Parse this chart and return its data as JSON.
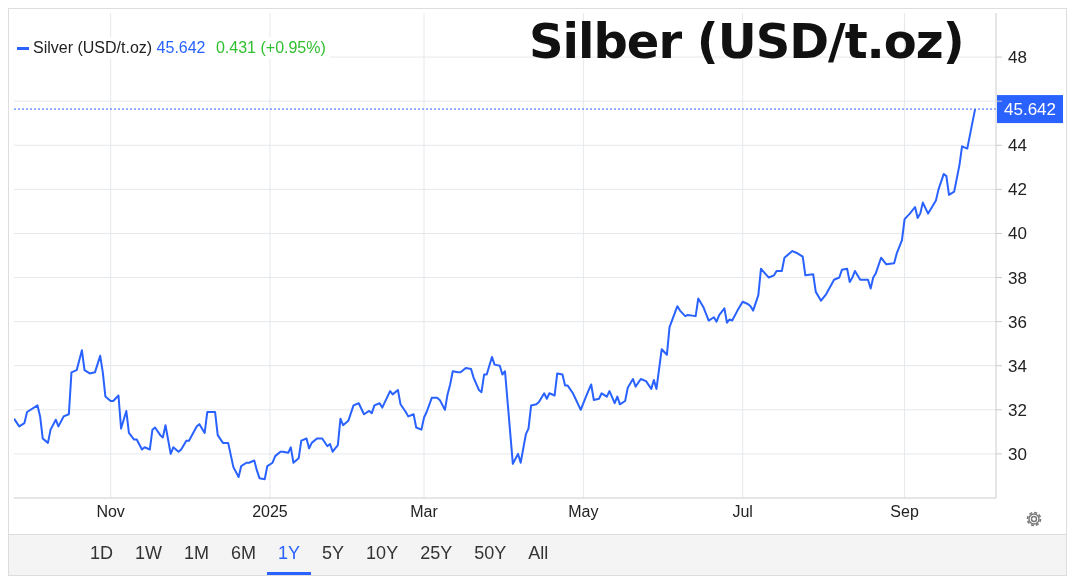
{
  "chart_data": {
    "type": "line",
    "title": "Silber (USD/t.oz)",
    "x": [
      "2024-09-25",
      "2024-09-27",
      "2024-09-29",
      "2024-09-30",
      "2024-10-04",
      "2024-10-05",
      "2024-10-06",
      "2024-10-08",
      "2024-10-09",
      "2024-10-11",
      "2024-10-12",
      "2024-10-14",
      "2024-10-16",
      "2024-10-17",
      "2024-10-19",
      "2024-10-21",
      "2024-10-22",
      "2024-10-24",
      "2024-10-26",
      "2024-10-28",
      "2024-10-29",
      "2024-10-30",
      "2024-11-01",
      "2024-11-02",
      "2024-11-04",
      "2024-11-05",
      "2024-11-07",
      "2024-11-08",
      "2024-11-10",
      "2024-11-11",
      "2024-11-13",
      "2024-11-14",
      "2024-11-16",
      "2024-11-17",
      "2024-11-18",
      "2024-11-20",
      "2024-11-21",
      "2024-11-22",
      "2024-11-24",
      "2024-11-25",
      "2024-11-27",
      "2024-11-28",
      "2024-11-30",
      "2024-12-01",
      "2024-12-04",
      "2024-12-05",
      "2024-12-07",
      "2024-12-08",
      "2024-12-11",
      "2024-12-12",
      "2024-12-14",
      "2024-12-16",
      "2024-12-18",
      "2024-12-20",
      "2024-12-21",
      "2024-12-23",
      "2024-12-24",
      "2024-12-26",
      "2024-12-27",
      "2024-12-28",
      "2024-12-30",
      "2024-12-31",
      "2025-01-02",
      "2025-01-03",
      "2025-01-05",
      "2025-01-06",
      "2025-01-08",
      "2025-01-09",
      "2025-01-10",
      "2025-01-12",
      "2025-01-13",
      "2025-01-15",
      "2025-01-16",
      "2025-01-17",
      "2025-01-19",
      "2025-01-21",
      "2025-01-23",
      "2025-01-24",
      "2025-01-25",
      "2025-01-27",
      "2025-01-28",
      "2025-01-29",
      "2025-01-31",
      "2025-02-02",
      "2025-02-04",
      "2025-02-06",
      "2025-02-08",
      "2025-02-09",
      "2025-02-10",
      "2025-02-12",
      "2025-02-13",
      "2025-02-16",
      "2025-02-17",
      "2025-02-19",
      "2025-02-20",
      "2025-02-22",
      "2025-02-23",
      "2025-02-25",
      "2025-02-26",
      "2025-02-28",
      "2025-03-01",
      "2025-03-02",
      "2025-03-04",
      "2025-03-06",
      "2025-03-07",
      "2025-03-09",
      "2025-03-10",
      "2025-03-11",
      "2025-03-12",
      "2025-03-14",
      "2025-03-15",
      "2025-03-17",
      "2025-03-19",
      "2025-03-20",
      "2025-03-22",
      "2025-03-23",
      "2025-03-24",
      "2025-03-25",
      "2025-03-27",
      "2025-03-28",
      "2025-03-30",
      "2025-03-31",
      "2025-04-01",
      "2025-04-04",
      "2025-04-06",
      "2025-04-07",
      "2025-04-09",
      "2025-04-10",
      "2025-04-11",
      "2025-04-13",
      "2025-04-14",
      "2025-04-16",
      "2025-04-17",
      "2025-04-18",
      "2025-04-20",
      "2025-04-21",
      "2025-04-23",
      "2025-04-24",
      "2025-04-25",
      "2025-04-27",
      "2025-04-28",
      "2025-04-30",
      "2025-05-02",
      "2025-05-04",
      "2025-05-05",
      "2025-05-07",
      "2025-05-08",
      "2025-05-10",
      "2025-05-11",
      "2025-05-13",
      "2025-05-14",
      "2025-05-15",
      "2025-05-17",
      "2025-05-18",
      "2025-05-20",
      "2025-05-21",
      "2025-05-23",
      "2025-05-25",
      "2025-05-27",
      "2025-05-28",
      "2025-05-29",
      "2025-05-31",
      "2025-06-02",
      "2025-06-03",
      "2025-06-06",
      "2025-06-07",
      "2025-06-09",
      "2025-06-10",
      "2025-06-13",
      "2025-06-14",
      "2025-06-16",
      "2025-06-18",
      "2025-06-20",
      "2025-06-21",
      "2025-06-22",
      "2025-06-24",
      "2025-06-25",
      "2025-06-26",
      "2025-06-27",
      "2025-06-29",
      "2025-07-01",
      "2025-07-03",
      "2025-07-04",
      "2025-07-05",
      "2025-07-07",
      "2025-07-08",
      "2025-07-11",
      "2025-07-13",
      "2025-07-14",
      "2025-07-16",
      "2025-07-17",
      "2025-07-20",
      "2025-07-22",
      "2025-07-24",
      "2025-07-25",
      "2025-07-28",
      "2025-07-29",
      "2025-07-31",
      "2025-08-02",
      "2025-08-05",
      "2025-08-07",
      "2025-08-08",
      "2025-08-10",
      "2025-08-11",
      "2025-08-12",
      "2025-08-13",
      "2025-08-15",
      "2025-08-18",
      "2025-08-19",
      "2025-08-20",
      "2025-08-21",
      "2025-08-23",
      "2025-08-25",
      "2025-08-28",
      "2025-08-29",
      "2025-08-31",
      "2025-09-01",
      "2025-09-03",
      "2025-09-05",
      "2025-09-06",
      "2025-09-07",
      "2025-09-08",
      "2025-09-10",
      "2025-09-11",
      "2025-09-13",
      "2025-09-14",
      "2025-09-16",
      "2025-09-17",
      "2025-09-18",
      "2025-09-20",
      "2025-09-22",
      "2025-09-23",
      "2025-09-25",
      "2025-09-27",
      "2025-09-28"
    ],
    "series": [
      {
        "name": "Silver (USD/t.oz)",
        "color": "#2962ff",
        "values": [
          31.6,
          31.25,
          31.4,
          31.9,
          32.2,
          31.7,
          30.7,
          30.5,
          31.1,
          31.55,
          31.25,
          31.7,
          31.8,
          33.7,
          33.8,
          34.7,
          33.8,
          33.65,
          33.7,
          34.45,
          33.7,
          32.6,
          32.4,
          32.4,
          32.65,
          31.15,
          31.95,
          30.95,
          30.65,
          30.65,
          30.2,
          30.3,
          30.2,
          31.1,
          31.2,
          30.85,
          30.75,
          31.3,
          30.0,
          30.3,
          30.1,
          30.2,
          30.6,
          30.6,
          31.25,
          31.35,
          30.95,
          31.9,
          31.9,
          30.85,
          30.5,
          30.5,
          29.4,
          28.95,
          29.45,
          29.6,
          29.6,
          29.7,
          29.25,
          28.9,
          28.85,
          29.45,
          29.6,
          29.9,
          30.1,
          30.1,
          30.05,
          30.3,
          29.6,
          29.8,
          30.6,
          30.7,
          30.25,
          30.5,
          30.7,
          30.7,
          30.35,
          30.45,
          30.1,
          30.4,
          31.6,
          31.3,
          31.5,
          32.2,
          32.3,
          31.8,
          31.95,
          31.85,
          32.2,
          32.3,
          32.1,
          32.85,
          32.7,
          32.9,
          32.25,
          31.9,
          31.7,
          31.8,
          31.2,
          31.1,
          31.65,
          31.9,
          32.55,
          32.55,
          32.45,
          32.0,
          32.7,
          33.15,
          33.75,
          33.7,
          33.7,
          33.9,
          33.85,
          33.45,
          32.9,
          32.8,
          33.6,
          33.6,
          34.4,
          34.05,
          34.0,
          33.6,
          33.75,
          29.55,
          30.0,
          29.6,
          30.9,
          31.15,
          32.2,
          32.25,
          32.35,
          32.75,
          32.5,
          32.75,
          32.65,
          33.65,
          33.6,
          33.1,
          33.1,
          32.75,
          32.5,
          32.0,
          32.6,
          33.15,
          32.45,
          32.5,
          32.75,
          32.6,
          32.85,
          32.3,
          32.6,
          32.25,
          32.4,
          33.0,
          33.4,
          33.05,
          33.4,
          33.3,
          32.95,
          33.35,
          32.95,
          34.75,
          34.5,
          35.75,
          36.7,
          36.5,
          36.25,
          36.3,
          36.25,
          37.05,
          36.65,
          36.05,
          36.2,
          36.0,
          36.3,
          36.6,
          35.95,
          36.1,
          36.05,
          36.5,
          36.9,
          36.8,
          36.7,
          36.5,
          37.2,
          38.4,
          38.0,
          38.1,
          38.3,
          38.3,
          38.9,
          39.2,
          39.1,
          38.95,
          38.1,
          38.15,
          37.35,
          36.95,
          37.25,
          37.9,
          38.0,
          38.35,
          38.4,
          37.8,
          38.0,
          38.3,
          37.9,
          37.9,
          37.5,
          38.0,
          38.2,
          38.9,
          38.6,
          38.65,
          39.1,
          39.7,
          40.65,
          40.9,
          41.2,
          40.7,
          40.9,
          41.4,
          40.9,
          41.1,
          41.5,
          42.0,
          42.7,
          42.6,
          41.75,
          41.9,
          43.1,
          43.95,
          43.85,
          45.05,
          45.642
        ]
      }
    ],
    "xlim": [
      "2024-09-25",
      "2025-10-06"
    ],
    "xticks": [
      {
        "value": "2024-11-01",
        "label": "Nov"
      },
      {
        "value": "2025-01-01",
        "label": "2025"
      },
      {
        "value": "2025-03-01",
        "label": "Mar"
      },
      {
        "value": "2025-05-01",
        "label": "May"
      },
      {
        "value": "2025-07-01",
        "label": "Jul"
      },
      {
        "value": "2025-09-01",
        "label": "Sep"
      }
    ],
    "ylim": [
      28,
      50
    ],
    "yticks": [
      30,
      32,
      34,
      36,
      38,
      40,
      42,
      44,
      {
        "value": 46,
        "label": null
      },
      48
    ],
    "grid": true,
    "legend": "top left",
    "marker": "none",
    "line_style": "solid",
    "ref_lines": [
      {
        "axis": "y",
        "value": 45.642,
        "label": "45.642",
        "color": "#2962ff",
        "line_style": "dotted"
      }
    ],
    "annotations": [
      "45.642",
      "0.431 (+0.95%)",
      "1D",
      "1W",
      "1M",
      "6M",
      "1Y",
      "5Y",
      "10Y",
      "25Y",
      "50Y",
      "All"
    ]
  }
}
